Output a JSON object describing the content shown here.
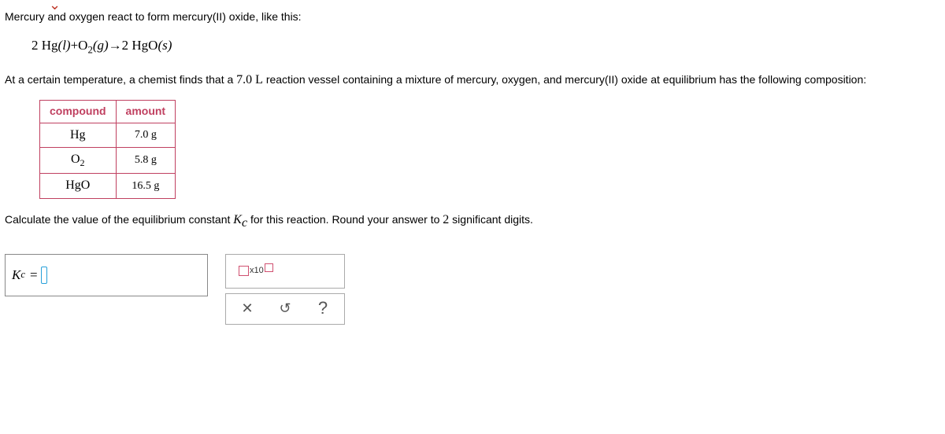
{
  "intro_text": "Mercury and oxygen react to form mercury(II) oxide, like this:",
  "equation": {
    "coef1": "2",
    "sp1": "Hg",
    "phase1": "(l)",
    "plus": "+",
    "sp2": "O",
    "sp2_sub": "2",
    "phase2": "(g)",
    "arrow": "→",
    "coef2": "2",
    "sp3": "HgO",
    "phase3": "(s)"
  },
  "context": {
    "pre": "At a certain temperature, a chemist finds that a ",
    "vol": "7.0 L",
    "post": " reaction vessel containing a mixture of mercury, oxygen, and mercury(II) oxide at equilibrium has the following composition:"
  },
  "table": {
    "headers": {
      "c1": "compound",
      "c2": "amount"
    },
    "rows": [
      {
        "compound_html": "Hg",
        "amount": "7.0 g"
      },
      {
        "compound_html": "O2",
        "amount": "5.8 g"
      },
      {
        "compound_html": "HgO",
        "amount": "16.5 g"
      }
    ]
  },
  "question": {
    "pre": "Calculate the value of the equilibrium constant ",
    "sym": "K",
    "sym_sub": "c",
    "mid": " for this reaction. Round your answer to ",
    "sig": "2",
    "post": " significant digits."
  },
  "answer": {
    "sym": "K",
    "sym_sub": "c",
    "eq": "="
  },
  "tools": {
    "sci_label": "x10",
    "clear": "✕",
    "reset": "↺",
    "help": "?"
  }
}
